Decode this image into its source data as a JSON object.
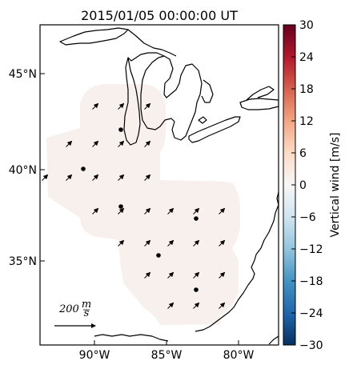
{
  "title": "2015/01/05 00:00:00 UT",
  "axes": {
    "lat_ticks": [
      "45°N",
      "40°N",
      "35°N"
    ],
    "lon_ticks": [
      "90°W",
      "85°W",
      "80°W"
    ]
  },
  "colorbar": {
    "label": "Vertical wind [m/s]",
    "ticks": [
      "30",
      "24",
      "18",
      "12",
      "6",
      "0",
      "−6",
      "−12",
      "−18",
      "−24",
      "−30"
    ],
    "colors": [
      "#67001f",
      "#b2182b",
      "#d6604d",
      "#f4a582",
      "#fddbc7",
      "#f7f7f7",
      "#d1e5f0",
      "#92c5de",
      "#4393c3",
      "#2166ac",
      "#053061"
    ]
  },
  "scale_arrow": {
    "value": "200",
    "unit_num": "m",
    "unit_den": "s"
  },
  "field_color": "#f7f0ed"
}
